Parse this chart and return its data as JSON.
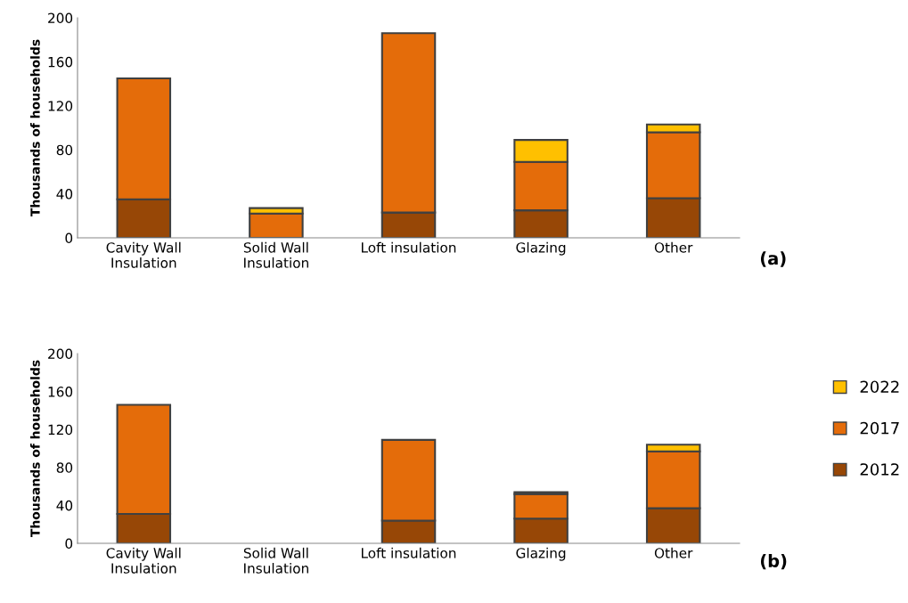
{
  "chart_data": [
    {
      "type": "bar",
      "stacked": true,
      "categories": [
        "Cavity Wall\nInsulation",
        "Solid Wall\nInsulation",
        "Loft insulation",
        "Glazing",
        "Other"
      ],
      "ylabel": "Thousands of households",
      "ylim": [
        0,
        200
      ],
      "yticks": [
        0,
        40,
        80,
        120,
        160,
        200
      ],
      "grid": false,
      "legend": "right",
      "annotations": [
        "(a)"
      ],
      "series": [
        {
          "name": "2012",
          "color": "#974706",
          "values": [
            35,
            null,
            23,
            25,
            36
          ]
        },
        {
          "name": "2017",
          "color": "#e46c0a",
          "values": [
            110,
            22,
            163,
            44,
            60
          ]
        },
        {
          "name": "2022",
          "color": "#ffc000",
          "values": [
            null,
            5,
            null,
            20,
            7
          ]
        }
      ]
    },
    {
      "type": "bar",
      "stacked": true,
      "categories": [
        "Cavity Wall\nInsulation",
        "Solid Wall\nInsulation",
        "Loft insulation",
        "Glazing",
        "Other"
      ],
      "ylabel": "Thousands of households",
      "ylim": [
        0,
        200
      ],
      "yticks": [
        0,
        40,
        80,
        120,
        160,
        200
      ],
      "grid": false,
      "legend": "right",
      "annotations": [
        "(b)"
      ],
      "series": [
        {
          "name": "2012",
          "color": "#974706",
          "values": [
            31,
            null,
            24,
            26,
            37
          ]
        },
        {
          "name": "2017",
          "color": "#e46c0a",
          "values": [
            115,
            null,
            85,
            26,
            60
          ]
        },
        {
          "name": "2022",
          "color": "#ffc000",
          "values": [
            null,
            null,
            null,
            2,
            7
          ]
        }
      ]
    }
  ]
}
